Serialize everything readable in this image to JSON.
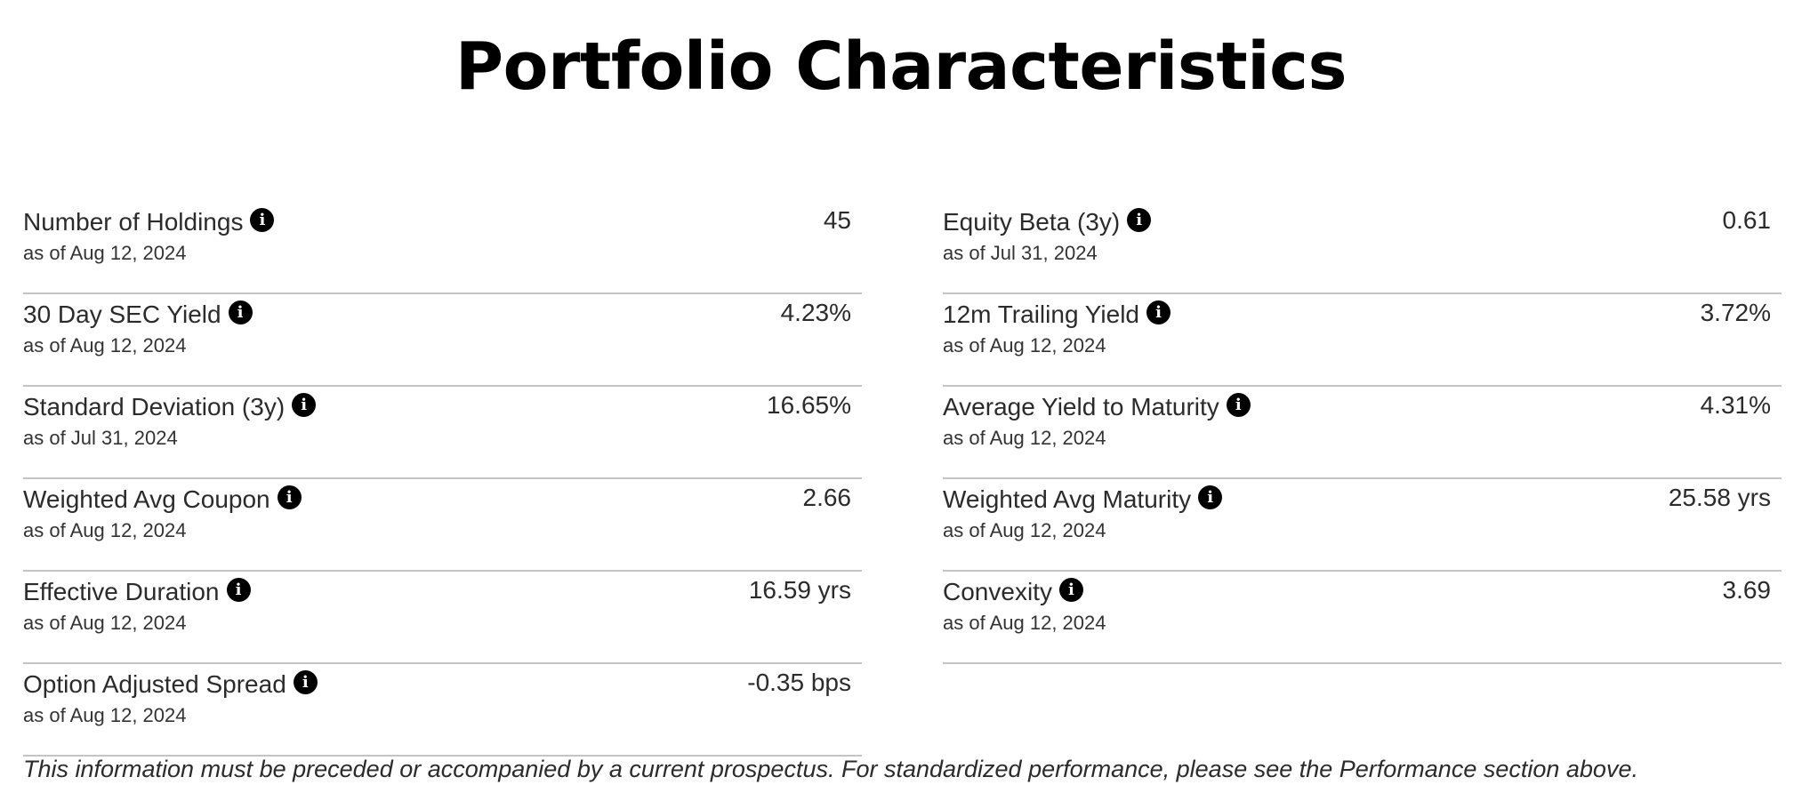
{
  "title": "Portfolio Characteristics",
  "left_column": [
    {
      "label": "Number of Holdings",
      "date": "as of Aug 12, 2024",
      "value": "45"
    },
    {
      "label": "30 Day SEC Yield",
      "date": "as of Aug 12, 2024",
      "value": "4.23%"
    },
    {
      "label": "Standard Deviation (3y)",
      "date": "as of Jul 31, 2024",
      "value": "16.65%"
    },
    {
      "label": "Weighted Avg Coupon",
      "date": "as of Aug 12, 2024",
      "value": "2.66"
    },
    {
      "label": "Effective Duration",
      "date": "as of Aug 12, 2024",
      "value": "16.59 yrs"
    },
    {
      "label": "Option Adjusted Spread",
      "date": "as of Aug 12, 2024",
      "value": "-0.35 bps"
    }
  ],
  "right_column": [
    {
      "label": "Equity Beta (3y)",
      "date": "as of Jul 31, 2024",
      "value": "0.61"
    },
    {
      "label": "12m Trailing Yield",
      "date": "as of Aug 12, 2024",
      "value": "3.72%"
    },
    {
      "label": "Average Yield to Maturity",
      "date": "as of Aug 12, 2024",
      "value": "4.31%"
    },
    {
      "label": "Weighted Avg Maturity",
      "date": "as of Aug 12, 2024",
      "value": "25.58 yrs"
    },
    {
      "label": "Convexity",
      "date": "as of Aug 12, 2024",
      "value": "3.69"
    }
  ],
  "info_icon": {
    "name": "info-icon",
    "glyph": "i"
  },
  "disclaimer": "This information must be preceded or accompanied by a current prospectus. For standardized performance, please see the Performance section above."
}
